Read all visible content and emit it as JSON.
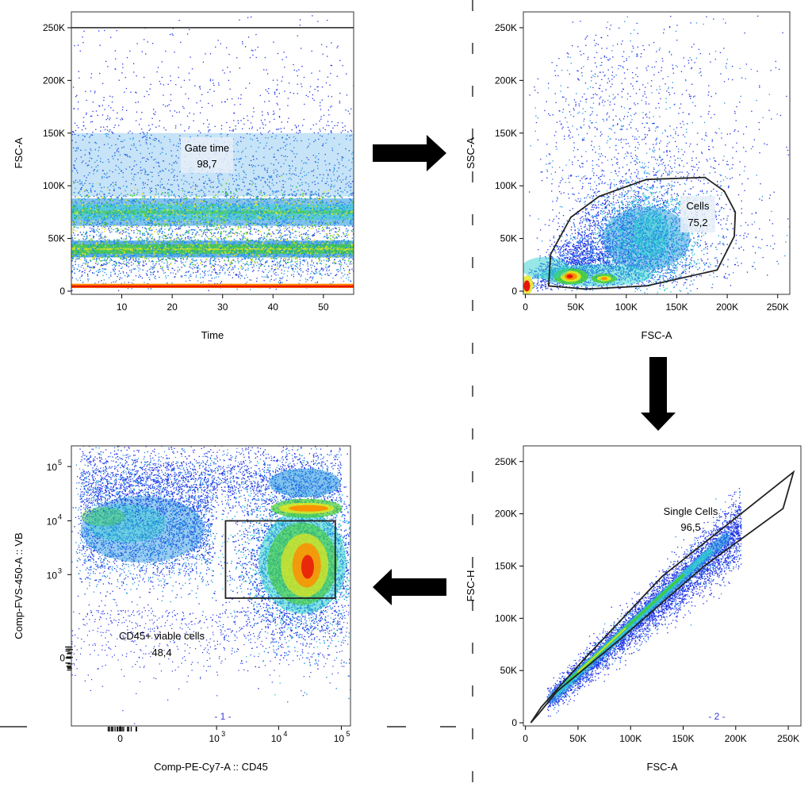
{
  "chart_data": [
    {
      "type": "scatter",
      "id": "time-gate",
      "xlabel": "Time",
      "ylabel": "FSC-A",
      "xlim": [
        0,
        56
      ],
      "ylim": [
        -3000,
        265000
      ],
      "x_ticks": [
        {
          "v": 10,
          "label": "10"
        },
        {
          "v": 20,
          "label": "20"
        },
        {
          "v": 30,
          "label": "30"
        },
        {
          "v": 40,
          "label": "40"
        },
        {
          "v": 50,
          "label": "50"
        }
      ],
      "y_ticks": [
        {
          "v": 0,
          "label": "0"
        },
        {
          "v": 50000,
          "label": "50K"
        },
        {
          "v": 100000,
          "label": "100K"
        },
        {
          "v": 150000,
          "label": "150K"
        },
        {
          "v": 200000,
          "label": "200K"
        },
        {
          "v": 250000,
          "label": "250K"
        }
      ],
      "gate": {
        "name": "Gate time",
        "percent": "98,7",
        "shape": "y-range",
        "y_range": [
          0,
          250000
        ]
      },
      "density_bands": [
        {
          "y_center": 5000,
          "spread": 2000,
          "intensity": "high"
        },
        {
          "y_center": 40000,
          "spread": 8000,
          "intensity": "high"
        },
        {
          "y_center": 75000,
          "spread": 12000,
          "intensity": "medium"
        },
        {
          "y_center": 120000,
          "spread": 50000,
          "intensity": "low"
        }
      ]
    },
    {
      "type": "scatter",
      "id": "cells",
      "xlabel": "FSC-A",
      "ylabel": "SSC-A",
      "xlim": [
        -2000,
        262000
      ],
      "ylim": [
        -3000,
        265000
      ],
      "x_ticks": [
        {
          "v": 0,
          "label": "0"
        },
        {
          "v": 50000,
          "label": "50K"
        },
        {
          "v": 100000,
          "label": "100K"
        },
        {
          "v": 150000,
          "label": "150K"
        },
        {
          "v": 200000,
          "label": "200K"
        },
        {
          "v": 250000,
          "label": "250K"
        }
      ],
      "y_ticks": [
        {
          "v": 0,
          "label": "0"
        },
        {
          "v": 50000,
          "label": "50K"
        },
        {
          "v": 100000,
          "label": "100K"
        },
        {
          "v": 150000,
          "label": "150K"
        },
        {
          "v": 200000,
          "label": "200K"
        },
        {
          "v": 250000,
          "label": "250K"
        }
      ],
      "gate": {
        "name": "Cells",
        "percent": "75,2",
        "shape": "polygon",
        "vertices": [
          [
            23000,
            5000
          ],
          [
            25000,
            35000
          ],
          [
            45000,
            70000
          ],
          [
            73000,
            90000
          ],
          [
            120000,
            106000
          ],
          [
            178000,
            108000
          ],
          [
            197000,
            95000
          ],
          [
            208000,
            75000
          ],
          [
            207000,
            52000
          ],
          [
            190000,
            20000
          ],
          [
            120000,
            5000
          ],
          [
            60000,
            2000
          ]
        ]
      },
      "density_clusters": [
        {
          "x": 42000,
          "y": 14000,
          "sx": 7000,
          "sy": 4000,
          "intensity": "high"
        },
        {
          "x": 75000,
          "y": 12000,
          "sx": 12000,
          "sy": 4000,
          "intensity": "high"
        },
        {
          "x": 2000,
          "y": 5000,
          "sx": 3000,
          "sy": 4000,
          "intensity": "high"
        },
        {
          "x": 120000,
          "y": 50000,
          "sx": 30000,
          "sy": 25000,
          "intensity": "medium"
        },
        {
          "x": 130000,
          "y": 60000,
          "sx": 80000,
          "sy": 60000,
          "intensity": "low"
        }
      ]
    },
    {
      "type": "scatter",
      "id": "single-cells",
      "xlabel": "FSC-A",
      "ylabel": "FSC-H",
      "xlim": [
        -2000,
        262000
      ],
      "ylim": [
        -3000,
        265000
      ],
      "x_ticks": [
        {
          "v": 0,
          "label": "0"
        },
        {
          "v": 50000,
          "label": "50K"
        },
        {
          "v": 100000,
          "label": "100K"
        },
        {
          "v": 150000,
          "label": "150K"
        },
        {
          "v": 200000,
          "label": "200K"
        },
        {
          "v": 250000,
          "label": "250K"
        }
      ],
      "y_ticks": [
        {
          "v": 0,
          "label": "0"
        },
        {
          "v": 50000,
          "label": "50K"
        },
        {
          "v": 100000,
          "label": "100K"
        },
        {
          "v": 150000,
          "label": "150K"
        },
        {
          "v": 200000,
          "label": "200K"
        },
        {
          "v": 250000,
          "label": "250K"
        }
      ],
      "gate": {
        "name": "Single Cells",
        "percent": "96,5",
        "shape": "polygon",
        "vertices": [
          [
            5000,
            0
          ],
          [
            15000,
            15000
          ],
          [
            55000,
            60000
          ],
          [
            130000,
            140000
          ],
          [
            255000,
            240000
          ],
          [
            245000,
            205000
          ],
          [
            170000,
            150000
          ],
          [
            90000,
            80000
          ],
          [
            30000,
            30000
          ],
          [
            12000,
            8000
          ]
        ]
      },
      "diagonal_band": {
        "x_start": 20000,
        "x_end": 205000,
        "slope": 0.93,
        "intercept": 2000,
        "width": 7000
      },
      "marker": "- 2 -"
    },
    {
      "type": "scatter",
      "id": "cd45-viable",
      "xlabel": "Comp-PE-Cy7-A :: CD45",
      "ylabel": "Comp-FVS-450-A :: VB",
      "scale": "biexponential",
      "x_ticks": [
        {
          "v": 0,
          "label": "0"
        },
        {
          "v": 1000,
          "label": "10",
          "exp": "3"
        },
        {
          "v": 10000,
          "label": "10",
          "exp": "4"
        },
        {
          "v": 100000,
          "label": "10",
          "exp": "5"
        }
      ],
      "y_ticks": [
        {
          "v": 0,
          "label": "0"
        },
        {
          "v": 1000,
          "label": "10",
          "exp": "3"
        },
        {
          "v": 10000,
          "label": "10",
          "exp": "4"
        },
        {
          "v": 100000,
          "label": "10",
          "exp": "5"
        }
      ],
      "gate": {
        "name": "CD45+ viable cells",
        "percent": "48,4",
        "shape": "rectangle",
        "x_range": [
          1400,
          80000
        ],
        "y_range": [
          350,
          10000
        ]
      },
      "density_clusters": [
        {
          "x": 25000,
          "y": 1500,
          "intensity": "high"
        },
        {
          "x": 25000,
          "y": 17000,
          "intensity": "high"
        },
        {
          "x": 30,
          "y": 8000,
          "intensity": "medium"
        }
      ],
      "marker": "- 1 -"
    }
  ],
  "arrows": [
    {
      "direction": "right",
      "from": "time-gate",
      "to": "cells"
    },
    {
      "direction": "down",
      "from": "cells",
      "to": "single-cells"
    },
    {
      "direction": "left",
      "from": "single-cells",
      "to": "cd45-viable"
    }
  ],
  "colors": {
    "sparse": "#1f2fe6",
    "low": "#1c8fe0",
    "mid": "#2fd0d0",
    "midhigh": "#44cc33",
    "high": "#e8e820",
    "veryhigh": "#ff8a00",
    "max": "#e8150a",
    "gate_line": "#222222",
    "gate_label_bg": "#e6eef8",
    "marker": "#3b3bd6"
  }
}
